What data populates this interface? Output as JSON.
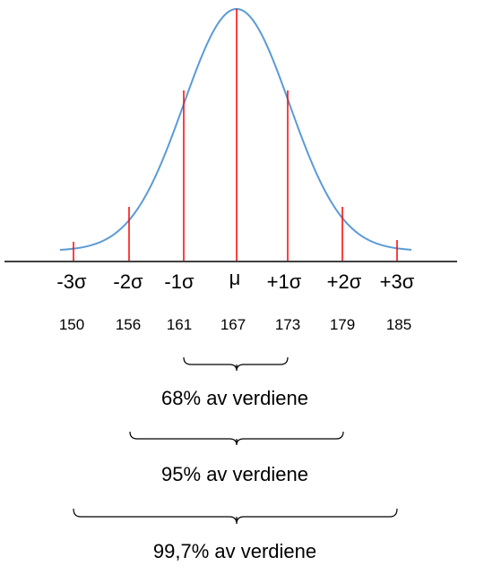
{
  "colors": {
    "curve": "#5b9bd5",
    "marker": "#ff0000",
    "axis": "#000000",
    "brace": "#000000"
  },
  "mean_label": "μ",
  "sigma_labels": [
    "-3σ",
    "-2σ",
    "-1σ",
    "μ",
    "+1σ",
    "+2σ",
    "+3σ"
  ],
  "values": [
    "150",
    "156",
    "161",
    "167",
    "173",
    "179",
    "185"
  ],
  "braces": [
    {
      "label": "68% av verdiene",
      "from_sigma": -1,
      "to_sigma": 1
    },
    {
      "label": "95% av verdiene",
      "from_sigma": -2,
      "to_sigma": 2
    },
    {
      "label": "99,7% av verdiene",
      "from_sigma": -3,
      "to_sigma": 3
    }
  ]
}
